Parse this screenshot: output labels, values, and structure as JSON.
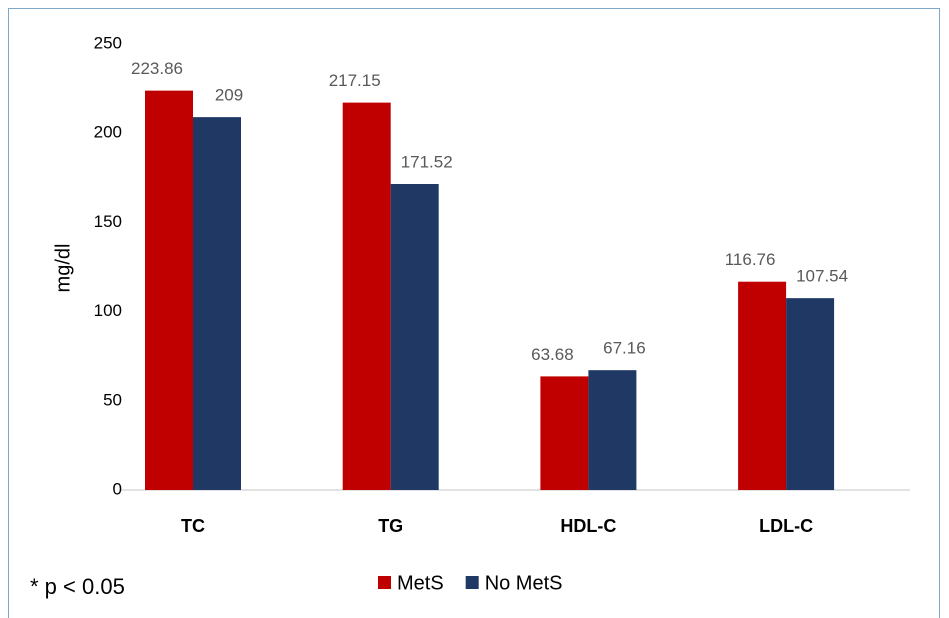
{
  "chart_data": {
    "type": "bar",
    "y_label": "mg/dl",
    "note": "* p < 0.05",
    "categories": [
      "TC",
      "TG",
      "HDL-C",
      "LDL-C"
    ],
    "series": [
      {
        "name": "MetS",
        "color": "#c00000",
        "values": [
          223.86,
          217.15,
          63.68,
          116.76
        ]
      },
      {
        "name": "No MetS",
        "color": "#1f3864",
        "values": [
          209,
          171.52,
          67.16,
          107.54
        ]
      }
    ],
    "ylim": [
      0,
      250
    ],
    "yticks": [
      0,
      50,
      100,
      150,
      200,
      250
    ],
    "grid": false,
    "legend": "bottom"
  }
}
